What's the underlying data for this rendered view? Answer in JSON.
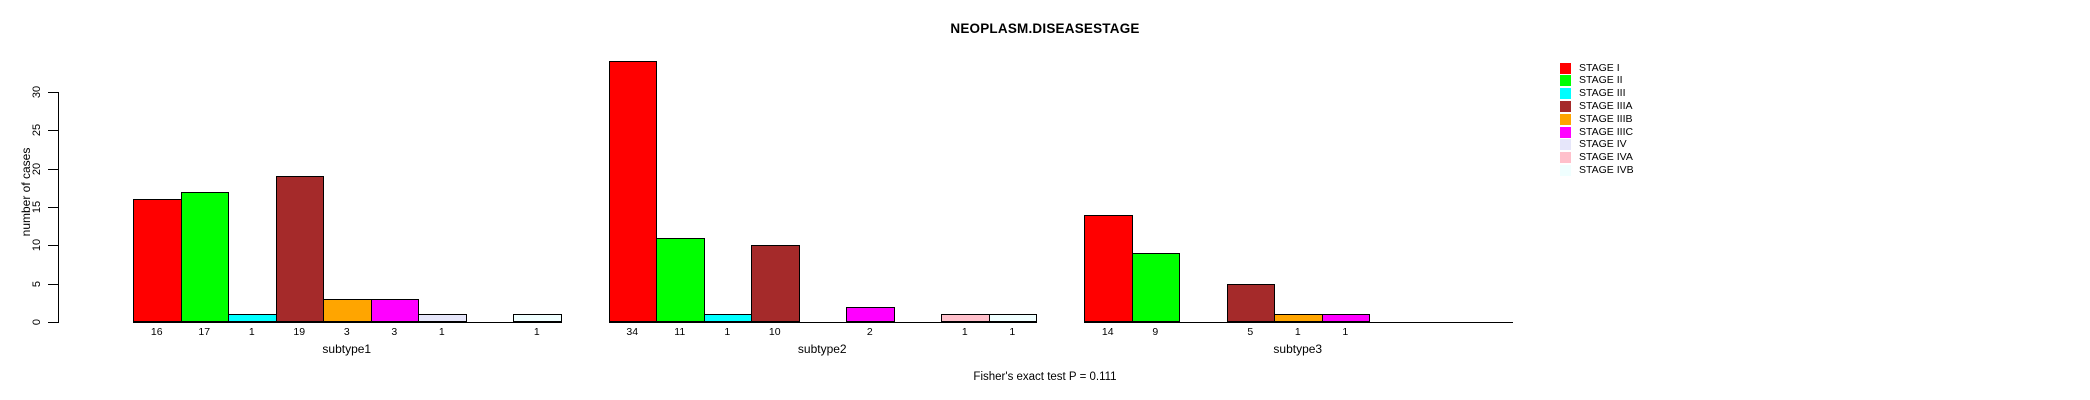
{
  "chart_data": {
    "type": "bar",
    "title": "NEOPLASM.DISEASESTAGE",
    "ylabel": "number of cases",
    "xlabel": "",
    "annotation": "Fisher's exact test P = 0.111",
    "yticks": [
      0,
      5,
      10,
      15,
      20,
      25,
      30
    ],
    "ylim": [
      0,
      34
    ],
    "grid": false,
    "legend_position": "top-right",
    "bar_borders": "black",
    "stages": [
      {
        "label": "STAGE I",
        "color": "#FF0000"
      },
      {
        "label": "STAGE II",
        "color": "#00FF00"
      },
      {
        "label": "STAGE III",
        "color": "#00FFFF"
      },
      {
        "label": "STAGE IIIA",
        "color": "#A52A2A"
      },
      {
        "label": "STAGE IIIB",
        "color": "#FFA500"
      },
      {
        "label": "STAGE IIIC",
        "color": "#FF00FF"
      },
      {
        "label": "STAGE IV",
        "color": "#E6E6FA"
      },
      {
        "label": "STAGE IVA",
        "color": "#FFC0CB"
      },
      {
        "label": "STAGE IVB",
        "color": "#F0FFFF"
      }
    ],
    "groups": [
      {
        "label": "subtype1",
        "values": [
          16,
          17,
          1,
          19,
          3,
          3,
          1,
          0,
          1
        ]
      },
      {
        "label": "subtype2",
        "values": [
          34,
          11,
          1,
          10,
          0,
          2,
          0,
          1,
          1
        ]
      },
      {
        "label": "subtype3",
        "values": [
          14,
          9,
          0,
          5,
          1,
          1,
          0,
          0,
          0
        ]
      }
    ]
  }
}
